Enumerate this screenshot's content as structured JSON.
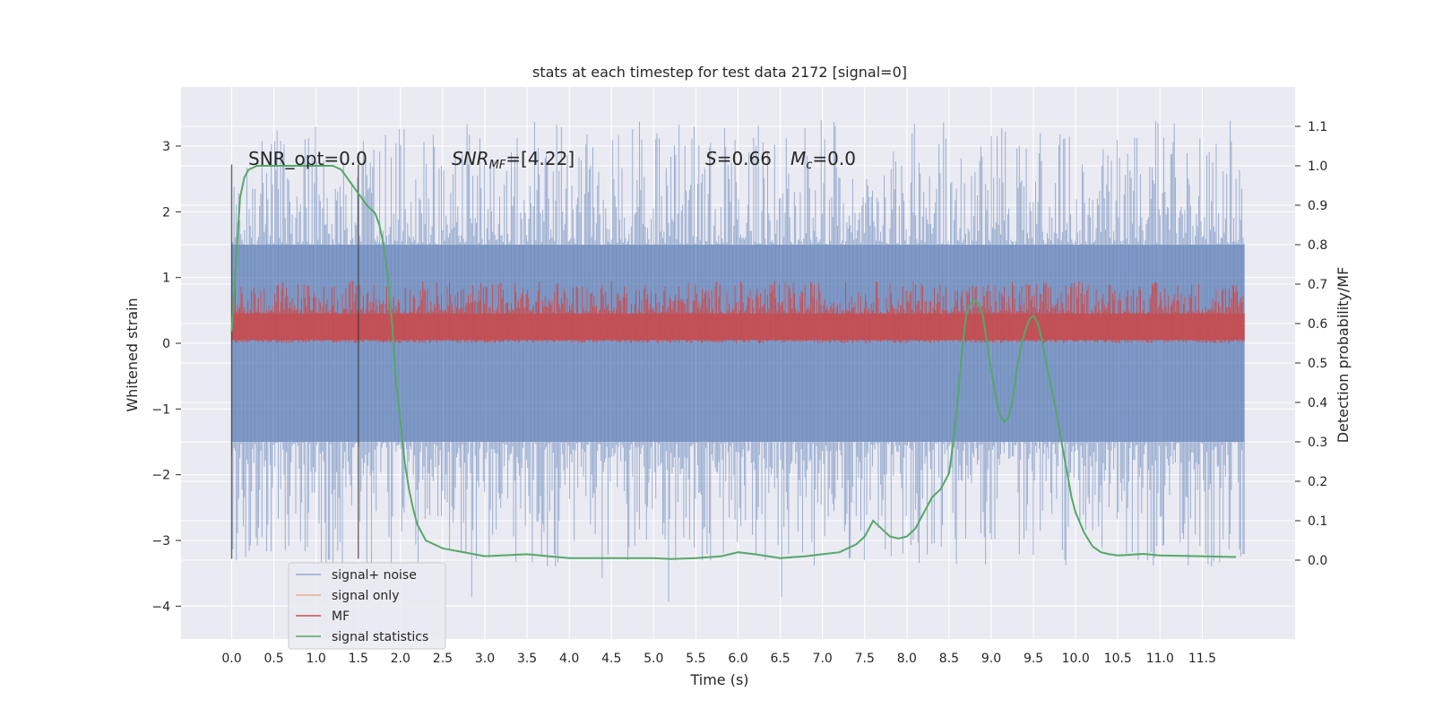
{
  "chart_data": {
    "type": "line",
    "title": "stats at each timestep for test data 2172 [signal=0]",
    "xlabel": "Time (s)",
    "ylabel": "Whitened strain",
    "y2label": "Detection probability/MF",
    "xlim": [
      -0.6,
      12.6
    ],
    "ylim": [
      -4.5,
      3.9
    ],
    "y2lim": [
      -0.2,
      1.2
    ],
    "x_ticks": [
      "0.0",
      "0.5",
      "1.0",
      "1.5",
      "2.0",
      "2.5",
      "3.0",
      "3.5",
      "4.0",
      "4.5",
      "5.0",
      "5.5",
      "6.0",
      "6.5",
      "7.0",
      "7.5",
      "8.0",
      "8.5",
      "9.0",
      "9.5",
      "10.0",
      "10.5",
      "11.0",
      "11.5"
    ],
    "y_ticks": [
      "3",
      "2",
      "1",
      "0",
      "−1",
      "−2",
      "−3",
      "−4"
    ],
    "y2_ticks": [
      "1.1",
      "1.0",
      "0.9",
      "0.8",
      "0.7",
      "0.6",
      "0.5",
      "0.4",
      "0.3",
      "0.2",
      "0.1",
      "0.0"
    ],
    "grid": true,
    "legend_position": "lower-left",
    "annotations": {
      "snr_opt": "SNR_opt=0.0",
      "snr_mf_sym": "SNR",
      "snr_mf_sub": "MF",
      "snr_mf_val": "=[4.22]",
      "s_sym": "S",
      "s_val": "=0.66",
      "mc_sym": "M",
      "mc_sub": "c",
      "mc_val": "=0.0"
    },
    "vlines_x": [
      0.0,
      1.5
    ],
    "series": [
      {
        "name": "signal+ noise",
        "color": "#4c72b0",
        "x_range": [
          0.0,
          12.0
        ],
        "band": [
          -1.5,
          1.5
        ],
        "extremes": [
          -4.1,
          3.55
        ]
      },
      {
        "name": "signal only",
        "color": "#dd8452",
        "values": [
          0.0
        ]
      },
      {
        "name": "MF",
        "color": "#c44e52",
        "x_range": [
          0.0,
          12.0
        ],
        "band": [
          0.0,
          0.95
        ],
        "mean": 0.28
      },
      {
        "name": "signal statistics",
        "color": "#55a868",
        "axis": "right",
        "x": [
          0.0,
          0.05,
          0.1,
          0.15,
          0.2,
          0.3,
          0.5,
          0.8,
          1.0,
          1.2,
          1.3,
          1.4,
          1.5,
          1.6,
          1.7,
          1.75,
          1.8,
          1.85,
          1.9,
          1.95,
          2.0,
          2.05,
          2.1,
          2.15,
          2.2,
          2.3,
          2.5,
          3.0,
          3.5,
          4.0,
          4.5,
          5.0,
          5.2,
          5.5,
          5.8,
          6.0,
          6.2,
          6.5,
          6.8,
          7.0,
          7.2,
          7.4,
          7.5,
          7.6,
          7.7,
          7.8,
          7.9,
          8.0,
          8.1,
          8.2,
          8.3,
          8.4,
          8.5,
          8.55,
          8.6,
          8.65,
          8.7,
          8.75,
          8.8,
          8.85,
          8.9,
          8.95,
          9.0,
          9.05,
          9.1,
          9.15,
          9.2,
          9.25,
          9.3,
          9.35,
          9.4,
          9.45,
          9.5,
          9.55,
          9.6,
          9.65,
          9.7,
          9.75,
          9.8,
          9.85,
          9.9,
          9.95,
          10.0,
          10.1,
          10.2,
          10.3,
          10.4,
          10.5,
          10.6,
          10.8,
          11.0,
          11.5,
          11.9
        ],
        "values": [
          0.58,
          0.75,
          0.92,
          0.97,
          0.99,
          1.0,
          1.0,
          1.0,
          1.0,
          1.0,
          0.99,
          0.96,
          0.93,
          0.9,
          0.88,
          0.85,
          0.8,
          0.72,
          0.6,
          0.45,
          0.35,
          0.25,
          0.18,
          0.13,
          0.09,
          0.05,
          0.03,
          0.01,
          0.015,
          0.005,
          0.005,
          0.005,
          0.003,
          0.005,
          0.01,
          0.02,
          0.015,
          0.005,
          0.01,
          0.015,
          0.02,
          0.04,
          0.06,
          0.1,
          0.08,
          0.06,
          0.055,
          0.06,
          0.08,
          0.12,
          0.16,
          0.18,
          0.22,
          0.3,
          0.4,
          0.52,
          0.62,
          0.65,
          0.66,
          0.65,
          0.62,
          0.55,
          0.48,
          0.42,
          0.37,
          0.35,
          0.36,
          0.4,
          0.48,
          0.54,
          0.58,
          0.61,
          0.62,
          0.6,
          0.56,
          0.5,
          0.45,
          0.4,
          0.34,
          0.28,
          0.22,
          0.16,
          0.12,
          0.07,
          0.035,
          0.02,
          0.015,
          0.012,
          0.013,
          0.016,
          0.012,
          0.01,
          0.008
        ]
      }
    ]
  }
}
